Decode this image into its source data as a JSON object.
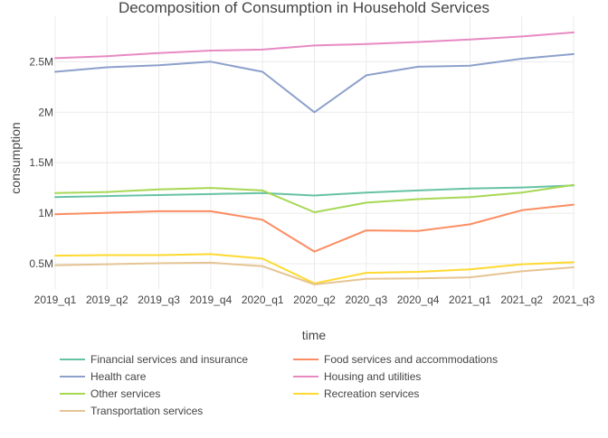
{
  "chart_data": {
    "type": "line",
    "title": "Decomposition of Consumption in Household Services",
    "xlabel": "time",
    "ylabel": "consumption",
    "categories": [
      "2019_q1",
      "2019_q2",
      "2019_q3",
      "2019_q4",
      "2020_q1",
      "2020_q2",
      "2020_q3",
      "2020_q4",
      "2021_q1",
      "2021_q2",
      "2021_q3"
    ],
    "ylim": [
      250000,
      2950000
    ],
    "yticks": [
      500000,
      1000000,
      1500000,
      2000000,
      2500000
    ],
    "ytick_labels": [
      "0.5M",
      "1M",
      "1.5M",
      "2M",
      "2.5M"
    ],
    "grid": true,
    "legend_position": "bottom",
    "series": [
      {
        "name": "Financial services and insurance",
        "color": "#66c2a5",
        "values": [
          1160000,
          1170000,
          1180000,
          1190000,
          1200000,
          1175000,
          1205000,
          1225000,
          1245000,
          1255000,
          1275000
        ]
      },
      {
        "name": "Food services and accommodations",
        "color": "#fc8d62",
        "values": [
          990000,
          1005000,
          1020000,
          1020000,
          935000,
          620000,
          830000,
          825000,
          890000,
          1030000,
          1085000
        ]
      },
      {
        "name": "Health care",
        "color": "#8da0cb",
        "values": [
          2400000,
          2445000,
          2465000,
          2500000,
          2400000,
          2000000,
          2365000,
          2450000,
          2460000,
          2530000,
          2575000
        ]
      },
      {
        "name": "Housing and utilities",
        "color": "#e78ac3",
        "values": [
          2535000,
          2555000,
          2585000,
          2610000,
          2620000,
          2660000,
          2675000,
          2695000,
          2720000,
          2750000,
          2790000
        ]
      },
      {
        "name": "Other services",
        "color": "#a6d854",
        "values": [
          1200000,
          1210000,
          1235000,
          1250000,
          1225000,
          1010000,
          1105000,
          1140000,
          1160000,
          1205000,
          1280000
        ]
      },
      {
        "name": "Recreation services",
        "color": "#ffd92f",
        "values": [
          580000,
          585000,
          585000,
          595000,
          550000,
          305000,
          410000,
          420000,
          445000,
          495000,
          515000
        ]
      },
      {
        "name": "Transportation services",
        "color": "#e5c494",
        "values": [
          485000,
          495000,
          505000,
          510000,
          475000,
          295000,
          350000,
          355000,
          365000,
          425000,
          465000
        ]
      }
    ]
  }
}
